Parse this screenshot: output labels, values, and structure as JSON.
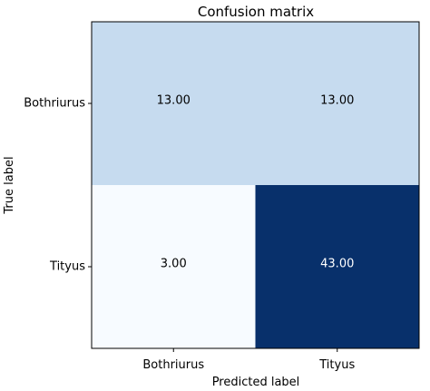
{
  "chart_data": {
    "type": "heatmap",
    "title": "Confusion matrix",
    "xlabel": "Predicted label",
    "ylabel": "True label",
    "x_categories": [
      "Bothriurus",
      "Tityus"
    ],
    "y_categories": [
      "Bothriurus",
      "Tityus"
    ],
    "values": [
      [
        13.0,
        13.0
      ],
      [
        3.0,
        43.0
      ]
    ],
    "cell_labels": [
      [
        "13.00",
        "13.00"
      ],
      [
        "3.00",
        "43.00"
      ]
    ],
    "colormap": "Blues",
    "cell_colors": [
      [
        "#c6dbef",
        "#c6dbef"
      ],
      [
        "#f7fbff",
        "#08306b"
      ]
    ],
    "label_colors": [
      [
        "#000000",
        "#000000"
      ],
      [
        "#000000",
        "#ffffff"
      ]
    ],
    "grid": false
  }
}
